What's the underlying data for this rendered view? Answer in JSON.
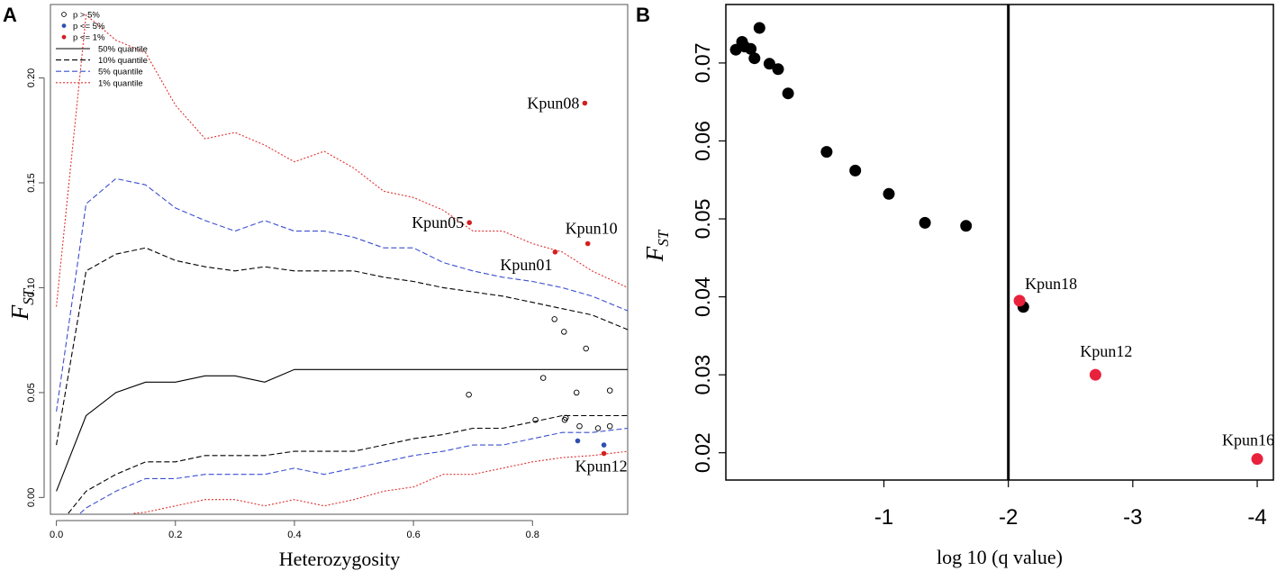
{
  "chart_data": [
    {
      "panel": "A",
      "type": "scatter",
      "xlabel": "Heterozygosity",
      "ylabel_main": "F",
      "ylabel_sub": "ST",
      "xlim": [
        -0.01,
        0.96
      ],
      "ylim": [
        -0.008,
        0.235
      ],
      "xticks": [
        0.0,
        0.2,
        0.4,
        0.6,
        0.8
      ],
      "xtick_labels": [
        "0.0",
        "0.2",
        "0.4",
        "0.6",
        "0.8"
      ],
      "yticks": [
        0.0,
        0.05,
        0.1,
        0.15,
        0.2
      ],
      "ytick_labels": [
        "0.00",
        "0.05",
        "0.10",
        "0.15",
        "0.20"
      ],
      "legend": {
        "position": "top-left",
        "points": [
          {
            "label": "p > 5%",
            "style": "open",
            "color": "#000000"
          },
          {
            "label": "p <= 5%",
            "style": "filled",
            "color": "#2f4fb0"
          },
          {
            "label": "p <= 1%",
            "style": "filled",
            "color": "#d42020"
          }
        ],
        "lines": [
          {
            "label": "50% quantile",
            "color": "#000000",
            "dash": "solid"
          },
          {
            "label": "10% quantile",
            "color": "#000000",
            "dash": "dashed"
          },
          {
            "label": "5% quantile",
            "color": "#3b4fcf",
            "dash": "dashed"
          },
          {
            "label": "1% quantile",
            "color": "#e03030",
            "dash": "dotted"
          }
        ]
      },
      "quantile_lines": [
        {
          "name": "1% upper",
          "color": "#e03030",
          "dash": "dotted",
          "x": [
            0.0,
            0.05,
            0.1,
            0.15,
            0.2,
            0.25,
            0.3,
            0.35,
            0.4,
            0.45,
            0.5,
            0.55,
            0.6,
            0.65,
            0.7,
            0.75,
            0.8,
            0.85,
            0.9,
            0.96
          ],
          "y": [
            0.091,
            0.23,
            0.218,
            0.212,
            0.187,
            0.171,
            0.174,
            0.168,
            0.16,
            0.165,
            0.157,
            0.146,
            0.143,
            0.137,
            0.127,
            0.127,
            0.121,
            0.117,
            0.108,
            0.1
          ]
        },
        {
          "name": "5% upper",
          "color": "#3b4fcf",
          "dash": "dashed",
          "x": [
            0.0,
            0.05,
            0.1,
            0.15,
            0.2,
            0.25,
            0.3,
            0.35,
            0.4,
            0.45,
            0.5,
            0.55,
            0.6,
            0.65,
            0.7,
            0.75,
            0.8,
            0.85,
            0.9,
            0.96
          ],
          "y": [
            0.041,
            0.14,
            0.152,
            0.149,
            0.138,
            0.132,
            0.127,
            0.132,
            0.127,
            0.127,
            0.124,
            0.119,
            0.119,
            0.112,
            0.108,
            0.105,
            0.103,
            0.1,
            0.096,
            0.089
          ]
        },
        {
          "name": "10% upper",
          "color": "#000000",
          "dash": "dashed",
          "x": [
            0.0,
            0.05,
            0.1,
            0.15,
            0.2,
            0.25,
            0.3,
            0.35,
            0.4,
            0.45,
            0.5,
            0.55,
            0.6,
            0.65,
            0.7,
            0.75,
            0.8,
            0.85,
            0.9,
            0.96
          ],
          "y": [
            0.025,
            0.108,
            0.116,
            0.119,
            0.113,
            0.11,
            0.108,
            0.11,
            0.108,
            0.108,
            0.108,
            0.105,
            0.103,
            0.1,
            0.098,
            0.096,
            0.093,
            0.09,
            0.087,
            0.08
          ]
        },
        {
          "name": "50%",
          "color": "#000000",
          "dash": "solid",
          "x": [
            0.0,
            0.05,
            0.1,
            0.15,
            0.2,
            0.25,
            0.3,
            0.35,
            0.4,
            0.45,
            0.5,
            0.55,
            0.6,
            0.65,
            0.7,
            0.75,
            0.8,
            0.85,
            0.9,
            0.96
          ],
          "y": [
            0.003,
            0.039,
            0.05,
            0.055,
            0.055,
            0.058,
            0.058,
            0.055,
            0.061,
            0.061,
            0.061,
            0.061,
            0.061,
            0.061,
            0.061,
            0.061,
            0.061,
            0.061,
            0.061,
            0.061
          ]
        },
        {
          "name": "10% lower",
          "color": "#000000",
          "dash": "dashed",
          "x": [
            0.02,
            0.05,
            0.1,
            0.15,
            0.2,
            0.25,
            0.3,
            0.35,
            0.4,
            0.45,
            0.5,
            0.55,
            0.6,
            0.65,
            0.7,
            0.75,
            0.8,
            0.85,
            0.9,
            0.96
          ],
          "y": [
            -0.008,
            0.003,
            0.011,
            0.017,
            0.017,
            0.02,
            0.02,
            0.02,
            0.022,
            0.022,
            0.022,
            0.025,
            0.028,
            0.03,
            0.033,
            0.033,
            0.036,
            0.039,
            0.039,
            0.039
          ]
        },
        {
          "name": "5% lower",
          "color": "#3b4fcf",
          "dash": "dashed",
          "x": [
            0.04,
            0.05,
            0.1,
            0.15,
            0.2,
            0.25,
            0.3,
            0.35,
            0.4,
            0.45,
            0.5,
            0.55,
            0.6,
            0.65,
            0.7,
            0.75,
            0.8,
            0.85,
            0.9,
            0.96
          ],
          "y": [
            -0.008,
            -0.005,
            0.003,
            0.009,
            0.009,
            0.011,
            0.011,
            0.011,
            0.014,
            0.011,
            0.014,
            0.017,
            0.02,
            0.022,
            0.025,
            0.025,
            0.028,
            0.031,
            0.031,
            0.033
          ]
        },
        {
          "name": "1% lower",
          "color": "#e03030",
          "dash": "dotted",
          "x": [
            0.13,
            0.15,
            0.2,
            0.25,
            0.3,
            0.35,
            0.4,
            0.45,
            0.5,
            0.55,
            0.6,
            0.65,
            0.7,
            0.75,
            0.8,
            0.85,
            0.9,
            0.96
          ],
          "y": [
            -0.008,
            -0.007,
            -0.004,
            -0.001,
            -0.001,
            -0.004,
            -0.001,
            -0.004,
            -0.001,
            0.003,
            0.005,
            0.011,
            0.011,
            0.014,
            0.017,
            0.019,
            0.02,
            0.022
          ]
        }
      ],
      "points": [
        {
          "x": 0.888,
          "y": 0.188,
          "category": "p<=1%",
          "label": "Kpun08",
          "label_side": "left"
        },
        {
          "x": 0.694,
          "y": 0.131,
          "category": "p<=1%",
          "label": "Kpun05",
          "label_side": "left"
        },
        {
          "x": 0.893,
          "y": 0.121,
          "category": "p<=1%",
          "label": "Kpun10",
          "label_side": "above"
        },
        {
          "x": 0.838,
          "y": 0.117,
          "category": "p<=1%",
          "label": "Kpun01",
          "label_side": "below-left"
        },
        {
          "x": 0.92,
          "y": 0.021,
          "category": "p<=1%",
          "label": "Kpun12",
          "label_side": "below"
        },
        {
          "x": 0.876,
          "y": 0.027,
          "category": "p<=5%",
          "label": ""
        },
        {
          "x": 0.92,
          "y": 0.025,
          "category": "p<=5%",
          "label": ""
        },
        {
          "x": 0.837,
          "y": 0.085,
          "category": "p>5%",
          "label": ""
        },
        {
          "x": 0.853,
          "y": 0.079,
          "category": "p>5%",
          "label": ""
        },
        {
          "x": 0.89,
          "y": 0.071,
          "category": "p>5%",
          "label": ""
        },
        {
          "x": 0.693,
          "y": 0.049,
          "category": "p>5%",
          "label": ""
        },
        {
          "x": 0.818,
          "y": 0.057,
          "category": "p>5%",
          "label": ""
        },
        {
          "x": 0.874,
          "y": 0.05,
          "category": "p>5%",
          "label": ""
        },
        {
          "x": 0.93,
          "y": 0.051,
          "category": "p>5%",
          "label": ""
        },
        {
          "x": 0.805,
          "y": 0.037,
          "category": "p>5%",
          "label": ""
        },
        {
          "x": 0.854,
          "y": 0.037,
          "category": "p>5%",
          "label": ""
        },
        {
          "x": 0.856,
          "y": 0.038,
          "category": "p>5%",
          "label": ""
        },
        {
          "x": 0.879,
          "y": 0.034,
          "category": "p>5%",
          "label": ""
        },
        {
          "x": 0.91,
          "y": 0.033,
          "category": "p>5%",
          "label": ""
        },
        {
          "x": 0.93,
          "y": 0.034,
          "category": "p>5%",
          "label": ""
        }
      ]
    },
    {
      "panel": "B",
      "type": "scatter",
      "xlabel": "log 10 (q value)",
      "ylabel_main": "F",
      "ylabel_sub": "ST",
      "xlim": [
        0.27,
        -4.13
      ],
      "ylim": [
        0.0165,
        0.0775
      ],
      "xticks": [
        -1,
        -2,
        -3,
        -4
      ],
      "xtick_labels": [
        "-1",
        "-2",
        "-3",
        "-4"
      ],
      "yticks": [
        0.02,
        0.03,
        0.04,
        0.05,
        0.06,
        0.07
      ],
      "ytick_labels": [
        "0.02",
        "0.03",
        "0.04",
        "0.05",
        "0.06",
        "0.07"
      ],
      "threshold_x": -2,
      "points": [
        {
          "x": 0.19,
          "y": 0.0717,
          "category": "neutral",
          "label": ""
        },
        {
          "x": 0.14,
          "y": 0.0727,
          "category": "neutral",
          "label": ""
        },
        {
          "x": 0.12,
          "y": 0.0721,
          "category": "neutral",
          "label": ""
        },
        {
          "x": 0.07,
          "y": 0.0718,
          "category": "neutral",
          "label": ""
        },
        {
          "x": 0.04,
          "y": 0.0706,
          "category": "neutral",
          "label": ""
        },
        {
          "x": 0.0,
          "y": 0.0745,
          "category": "neutral",
          "label": ""
        },
        {
          "x": -0.08,
          "y": 0.0699,
          "category": "neutral",
          "label": ""
        },
        {
          "x": -0.15,
          "y": 0.0692,
          "category": "neutral",
          "label": ""
        },
        {
          "x": -0.23,
          "y": 0.0661,
          "category": "neutral",
          "label": ""
        },
        {
          "x": -0.54,
          "y": 0.0586,
          "category": "neutral",
          "label": ""
        },
        {
          "x": -0.77,
          "y": 0.0562,
          "category": "neutral",
          "label": ""
        },
        {
          "x": -1.04,
          "y": 0.0532,
          "category": "neutral",
          "label": ""
        },
        {
          "x": -1.33,
          "y": 0.0495,
          "category": "neutral",
          "label": ""
        },
        {
          "x": -1.66,
          "y": 0.0491,
          "category": "neutral",
          "label": ""
        },
        {
          "x": -2.12,
          "y": 0.0387,
          "category": "neutral",
          "label": ""
        },
        {
          "x": -2.09,
          "y": 0.0395,
          "category": "outlier",
          "label": "Kpun18"
        },
        {
          "x": -2.7,
          "y": 0.03,
          "category": "outlier",
          "label": "Kpun12"
        },
        {
          "x": -4.0,
          "y": 0.0192,
          "category": "outlier",
          "label": "Kpun16"
        }
      ]
    }
  ],
  "panel_labels": {
    "a": "A",
    "b": "B"
  }
}
